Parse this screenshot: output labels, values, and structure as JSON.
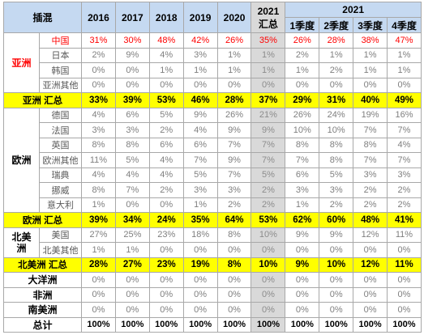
{
  "colors": {
    "header_bg": "#c5d9f1",
    "summary_column_bg": "#d9d9d9",
    "subtotal_bg": "#ffff00"
  },
  "chart_data": {
    "type": "table",
    "corner_label": "插混",
    "year_columns": [
      "2016",
      "2017",
      "2018",
      "2019",
      "2020"
    ],
    "summary_column": {
      "year": "2021",
      "label": "汇总"
    },
    "quarter_group": {
      "year": "2021",
      "quarters": [
        "1季度",
        "2季度",
        "3季度",
        "4季度"
      ]
    },
    "sections": [
      {
        "region": "亚洲",
        "countries": [
          {
            "name": "中国",
            "text_color": "#ff0000",
            "values": [
              "31%",
              "30%",
              "48%",
              "42%",
              "26%",
              "35%",
              "26%",
              "28%",
              "38%",
              "47%"
            ]
          },
          {
            "name": "日本",
            "values": [
              "2%",
              "9%",
              "4%",
              "3%",
              "1%",
              "1%",
              "2%",
              "1%",
              "1%",
              "1%"
            ]
          },
          {
            "name": "韩国",
            "values": [
              "0%",
              "0%",
              "1%",
              "1%",
              "1%",
              "1%",
              "1%",
              "2%",
              "1%",
              "1%"
            ]
          },
          {
            "name": "亚洲其他",
            "values": [
              "0%",
              "0%",
              "0%",
              "0%",
              "0%",
              "0%",
              "0%",
              "0%",
              "0%",
              "0%"
            ]
          }
        ],
        "subtotal": {
          "label": "亚洲 汇总",
          "values": [
            "33%",
            "39%",
            "53%",
            "46%",
            "28%",
            "37%",
            "29%",
            "31%",
            "40%",
            "49%"
          ]
        }
      },
      {
        "region": "欧洲",
        "countries": [
          {
            "name": "德国",
            "values": [
              "4%",
              "6%",
              "5%",
              "9%",
              "26%",
              "21%",
              "26%",
              "24%",
              "19%",
              "16%"
            ]
          },
          {
            "name": "法国",
            "values": [
              "3%",
              "3%",
              "2%",
              "4%",
              "9%",
              "9%",
              "10%",
              "10%",
              "7%",
              "7%"
            ]
          },
          {
            "name": "英国",
            "values": [
              "8%",
              "8%",
              "6%",
              "6%",
              "7%",
              "7%",
              "8%",
              "8%",
              "8%",
              "4%"
            ]
          },
          {
            "name": "欧洲其他",
            "values": [
              "11%",
              "5%",
              "4%",
              "7%",
              "9%",
              "7%",
              "7%",
              "8%",
              "7%",
              "7%"
            ]
          },
          {
            "name": "瑞典",
            "values": [
              "4%",
              "4%",
              "4%",
              "5%",
              "7%",
              "5%",
              "6%",
              "5%",
              "3%",
              "3%"
            ]
          },
          {
            "name": "挪威",
            "values": [
              "8%",
              "7%",
              "2%",
              "3%",
              "3%",
              "2%",
              "3%",
              "3%",
              "2%",
              "2%"
            ]
          },
          {
            "name": "意大利",
            "values": [
              "1%",
              "0%",
              "0%",
              "1%",
              "2%",
              "2%",
              "1%",
              "2%",
              "2%",
              "2%"
            ]
          }
        ],
        "subtotal": {
          "label": "欧洲 汇总",
          "values": [
            "39%",
            "34%",
            "24%",
            "35%",
            "64%",
            "53%",
            "62%",
            "60%",
            "48%",
            "41%"
          ]
        }
      },
      {
        "region": "北美洲",
        "countries": [
          {
            "name": "美国",
            "values": [
              "27%",
              "25%",
              "23%",
              "18%",
              "8%",
              "10%",
              "9%",
              "9%",
              "12%",
              "11%"
            ]
          },
          {
            "name": "北美其他",
            "values": [
              "1%",
              "1%",
              "0%",
              "0%",
              "0%",
              "0%",
              "0%",
              "0%",
              "0%",
              "0%"
            ]
          }
        ],
        "subtotal": {
          "label": "北美洲 汇总",
          "values": [
            "28%",
            "27%",
            "23%",
            "19%",
            "8%",
            "10%",
            "9%",
            "10%",
            "12%",
            "11%"
          ]
        }
      },
      {
        "label": "大洋洲",
        "values": [
          "0%",
          "0%",
          "0%",
          "0%",
          "0%",
          "0%",
          "0%",
          "0%",
          "0%",
          "0%"
        ]
      },
      {
        "label": "非洲",
        "values": [
          "0%",
          "0%",
          "0%",
          "0%",
          "0%",
          "0%",
          "0%",
          "0%",
          "0%",
          "0%"
        ]
      },
      {
        "label": "南美洲",
        "values": [
          "0%",
          "0%",
          "0%",
          "0%",
          "0%",
          "0%",
          "0%",
          "0%",
          "0%",
          "0%"
        ]
      }
    ],
    "total": {
      "label": "总计",
      "values": [
        "100%",
        "100%",
        "100%",
        "100%",
        "100%",
        "100%",
        "100%",
        "100%",
        "100%",
        "100%"
      ]
    }
  }
}
